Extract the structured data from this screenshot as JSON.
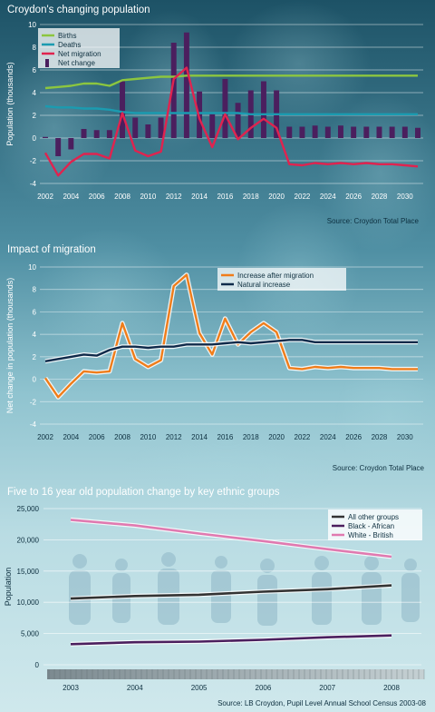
{
  "chart_data": [
    {
      "type": "bar",
      "title": "Croydon's changing population",
      "xlabel": "",
      "ylabel": "Population (thousands)",
      "ylim": [
        -4,
        10
      ],
      "yticks": [
        -4,
        -2,
        0,
        2,
        4,
        6,
        8,
        10
      ],
      "x": [
        2002,
        2003,
        2004,
        2005,
        2006,
        2007,
        2008,
        2009,
        2010,
        2011,
        2012,
        2013,
        2014,
        2015,
        2016,
        2017,
        2018,
        2019,
        2020,
        2021,
        2022,
        2023,
        2024,
        2025,
        2026,
        2027,
        2028,
        2029,
        2030,
        2031
      ],
      "xticks": [
        2002,
        2004,
        2006,
        2008,
        2010,
        2012,
        2014,
        2016,
        2018,
        2020,
        2022,
        2024,
        2026,
        2028,
        2030
      ],
      "series": [
        {
          "name": "Births",
          "kind": "line",
          "color": "#8cc63f",
          "values": [
            4.4,
            4.5,
            4.6,
            4.8,
            4.8,
            4.6,
            5.1,
            5.2,
            5.3,
            5.4,
            5.4,
            5.5,
            5.5,
            5.5,
            5.5,
            5.5,
            5.5,
            5.5,
            5.5,
            5.5,
            5.5,
            5.5,
            5.5,
            5.5,
            5.5,
            5.5,
            5.5,
            5.5,
            5.5,
            5.5
          ]
        },
        {
          "name": "Deaths",
          "kind": "line",
          "color": "#1b9bb0",
          "values": [
            2.8,
            2.7,
            2.7,
            2.6,
            2.6,
            2.5,
            2.3,
            2.2,
            2.2,
            2.2,
            2.2,
            2.2,
            2.2,
            2.2,
            2.2,
            2.2,
            2.1,
            2.1,
            2.1,
            2.1,
            2.1,
            2.1,
            2.1,
            2.1,
            2.1,
            2.1,
            2.1,
            2.1,
            2.1,
            2.1
          ]
        },
        {
          "name": "Net migration",
          "kind": "line",
          "color": "#e0234f",
          "values": [
            -1.3,
            -3.3,
            -2.1,
            -1.4,
            -1.4,
            -1.8,
            2.2,
            -1.1,
            -1.6,
            -1.2,
            5.2,
            6.2,
            1.7,
            -0.8,
            2.1,
            -0.1,
            0.9,
            1.7,
            0.9,
            -2.3,
            -2.4,
            -2.2,
            -2.3,
            -2.2,
            -2.3,
            -2.2,
            -2.3,
            -2.3,
            -2.4,
            -2.5
          ]
        },
        {
          "name": "Net change",
          "kind": "bar",
          "color": "#4b1f5e",
          "values": [
            0.1,
            -1.6,
            -1.0,
            0.8,
            0.7,
            0.7,
            5.0,
            1.8,
            1.2,
            1.8,
            8.4,
            9.3,
            4.1,
            2.1,
            5.2,
            3.1,
            4.2,
            5.0,
            4.2,
            1.0,
            1.0,
            1.1,
            1.0,
            1.1,
            1.0,
            1.0,
            1.0,
            1.0,
            1.0,
            0.9
          ]
        }
      ],
      "legend": "top-left",
      "grid": true,
      "source": "Source: Croydon Total Place"
    },
    {
      "type": "line",
      "title": "Impact of migration",
      "xlabel": "",
      "ylabel": "Net change in population (thousands)",
      "ylim": [
        -4,
        10
      ],
      "yticks": [
        -4,
        -2,
        0,
        2,
        4,
        6,
        8,
        10
      ],
      "x": [
        2002,
        2003,
        2004,
        2005,
        2006,
        2007,
        2008,
        2009,
        2010,
        2011,
        2012,
        2013,
        2014,
        2015,
        2016,
        2017,
        2018,
        2019,
        2020,
        2021,
        2022,
        2023,
        2024,
        2025,
        2026,
        2027,
        2028,
        2029,
        2030,
        2031
      ],
      "xticks": [
        2002,
        2004,
        2006,
        2008,
        2010,
        2012,
        2014,
        2016,
        2018,
        2020,
        2022,
        2024,
        2026,
        2028,
        2030
      ],
      "series": [
        {
          "name": "Increase after migration",
          "color": "#f07d1a",
          "values": [
            0.1,
            -1.6,
            -0.4,
            0.7,
            0.6,
            0.7,
            5.0,
            1.8,
            1.1,
            1.7,
            8.3,
            9.3,
            4.1,
            2.2,
            5.4,
            3.1,
            4.2,
            5.0,
            4.2,
            1.0,
            0.9,
            1.1,
            1.0,
            1.1,
            1.0,
            1.0,
            1.0,
            0.9,
            0.9,
            0.9
          ]
        },
        {
          "name": "Natural increase",
          "color": "#0f2a4a",
          "values": [
            1.6,
            1.8,
            2.0,
            2.2,
            2.1,
            2.6,
            2.9,
            2.9,
            2.8,
            2.9,
            2.9,
            3.1,
            3.1,
            3.1,
            3.2,
            3.3,
            3.2,
            3.3,
            3.4,
            3.5,
            3.5,
            3.3,
            3.3,
            3.3,
            3.3,
            3.3,
            3.3,
            3.3,
            3.3,
            3.3
          ]
        }
      ],
      "legend": "top-right",
      "grid": true,
      "source": "Source: Croydon Total Place"
    },
    {
      "type": "line",
      "title": "Five to 16 year old population change by key ethnic groups",
      "xlabel": "",
      "ylabel": "Population",
      "ylim": [
        0,
        25000
      ],
      "yticks": [
        0,
        5000,
        10000,
        15000,
        20000,
        25000
      ],
      "ytick_labels": [
        "0",
        "5,000",
        "10,000",
        "15,000",
        "20,000",
        "25,000"
      ],
      "categories": [
        "2003",
        "2004",
        "2005",
        "2006",
        "2007",
        "2008"
      ],
      "series": [
        {
          "name": "All other groups",
          "color": "#333333",
          "values": [
            10600,
            11000,
            11200,
            11700,
            12100,
            12700
          ]
        },
        {
          "name": "Black - African",
          "color": "#4b1f5e",
          "values": [
            3300,
            3600,
            3700,
            4000,
            4400,
            4700
          ]
        },
        {
          "name": "White - British",
          "color": "#e07ab0",
          "values": [
            23200,
            22300,
            21000,
            19800,
            18500,
            17300
          ]
        }
      ],
      "legend": "top-right",
      "grid": true,
      "source": "Source: LB Croydon, Pupil Level Annual School Census 2003-08"
    }
  ]
}
